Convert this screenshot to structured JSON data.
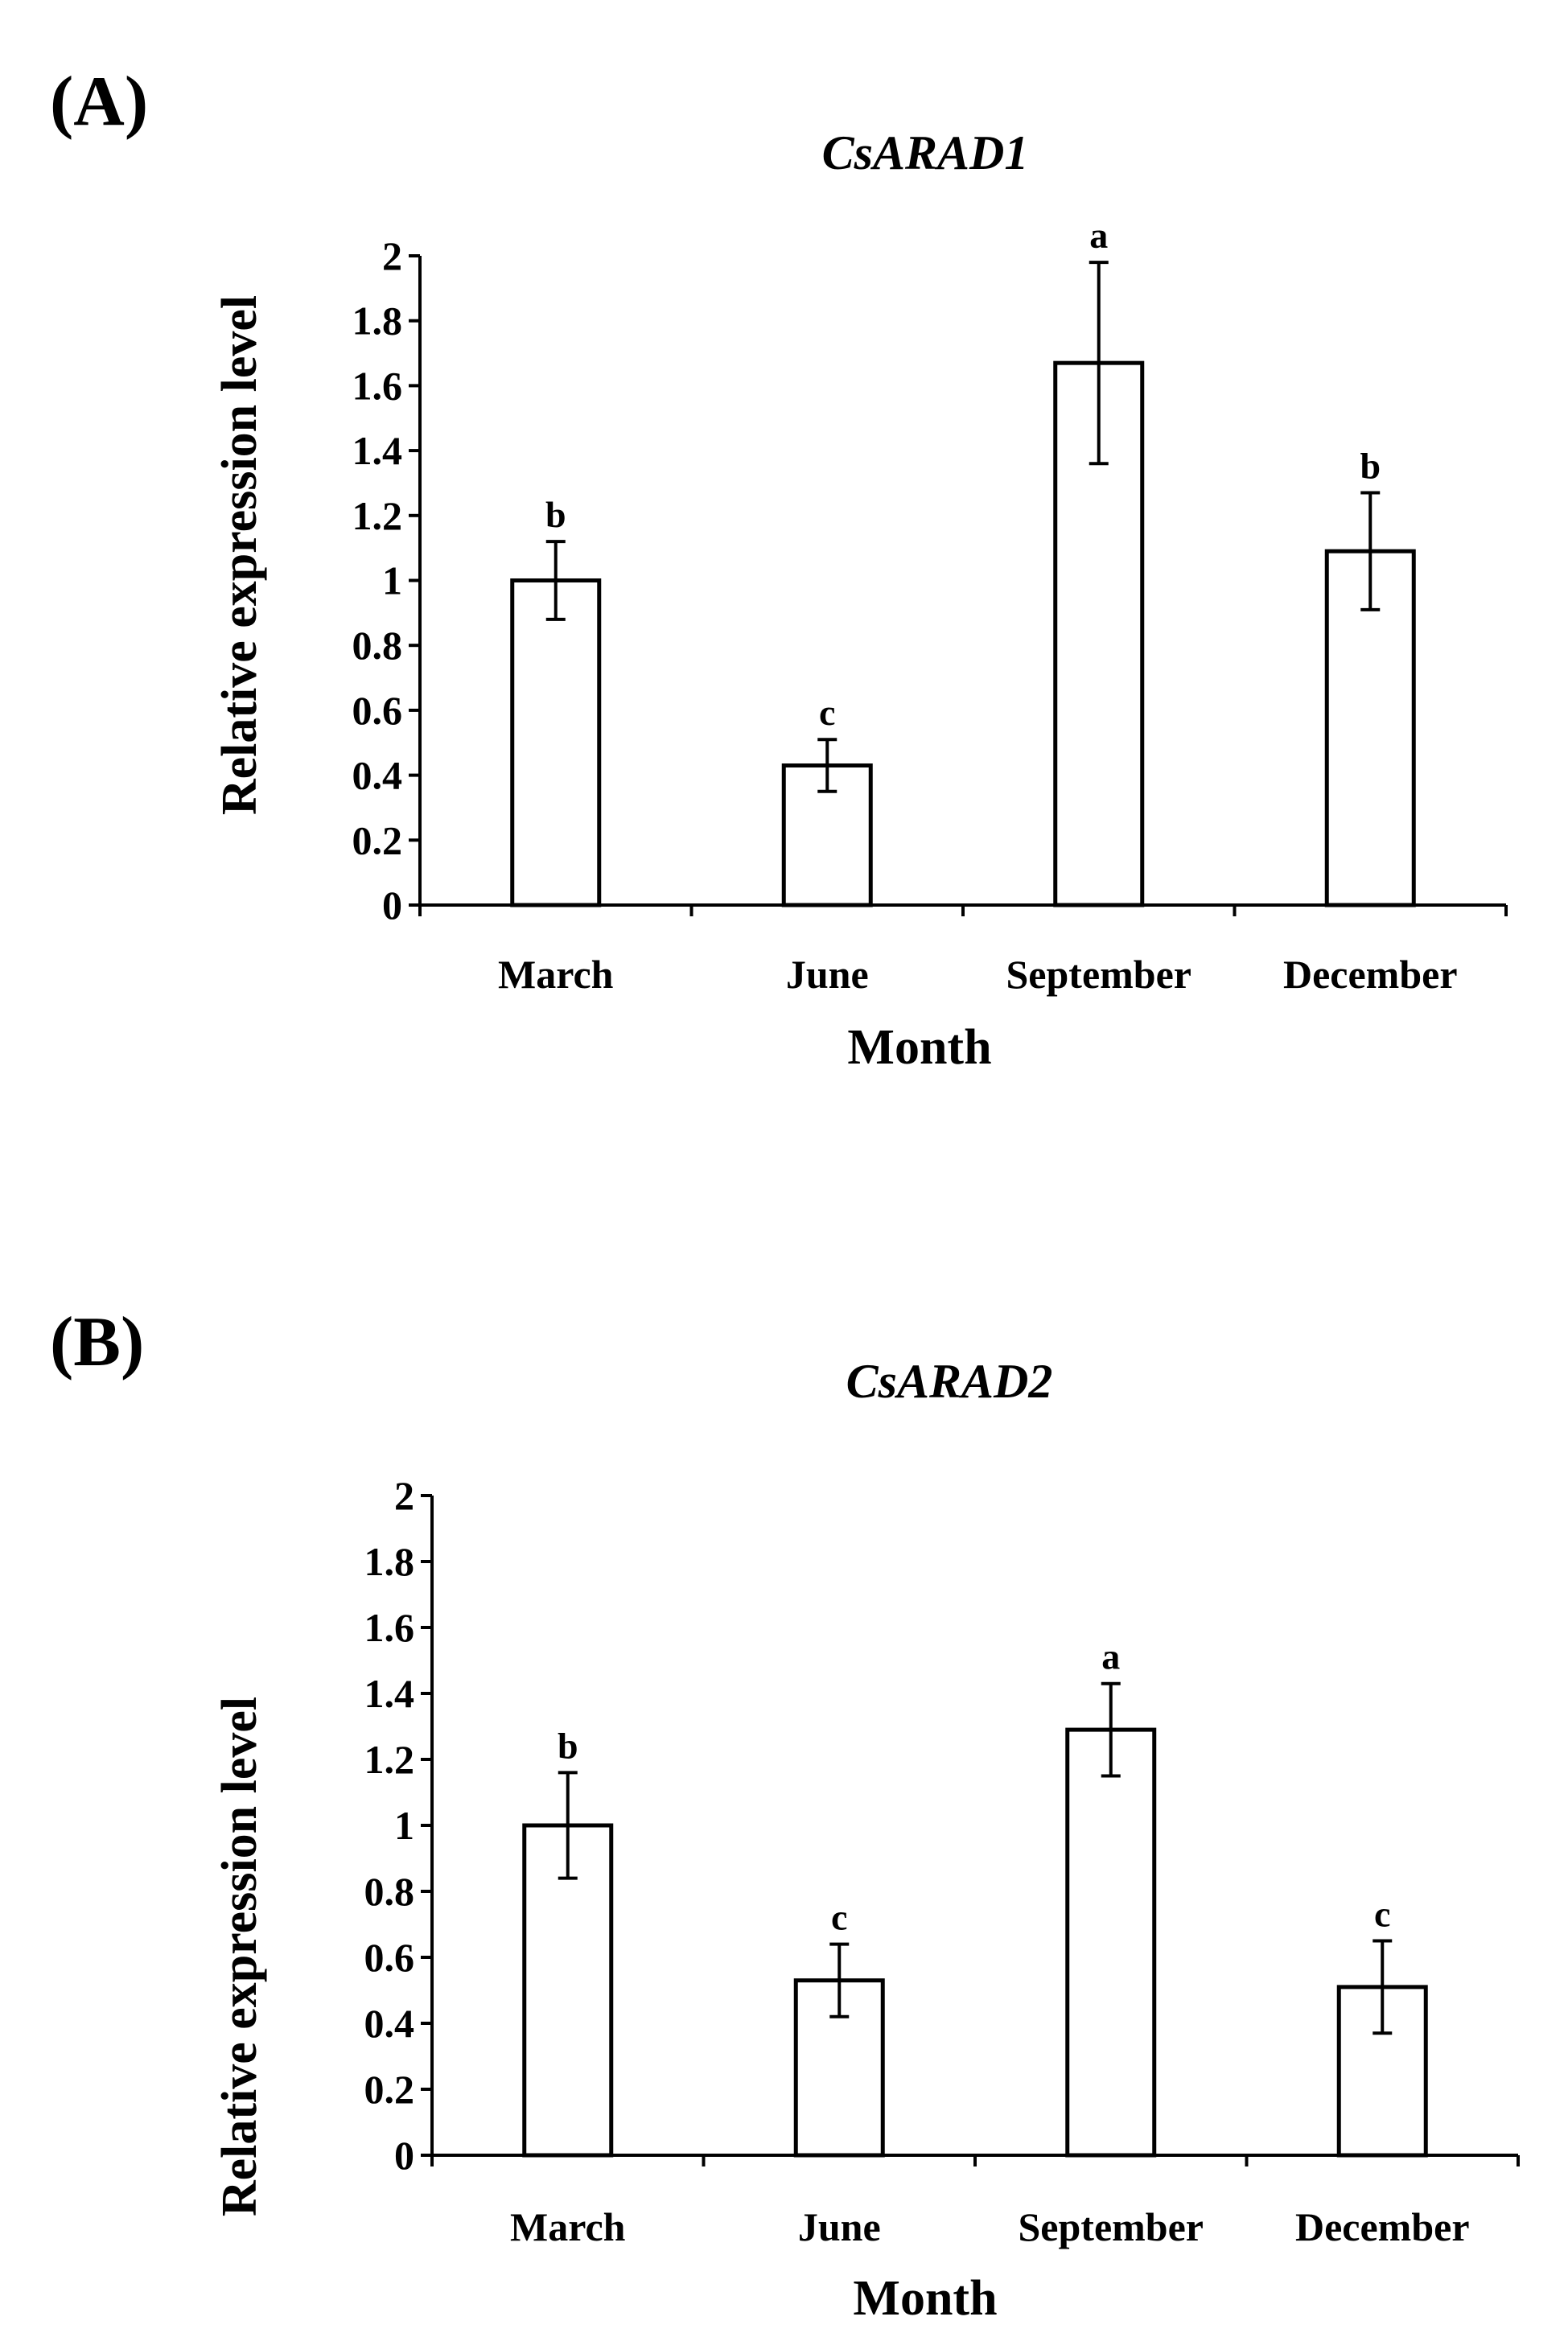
{
  "colors": {
    "bar_fill": "#ffffff",
    "bar_stroke": "#000000",
    "axis": "#000000",
    "background": "#ffffff"
  },
  "chart_data": [
    {
      "panel_label": "(A)",
      "type": "bar",
      "title": "CsARAD1",
      "xlabel": "Month",
      "ylabel": "Relative expression level",
      "categories": [
        "March",
        "June",
        "September",
        "December"
      ],
      "values": [
        1.0,
        0.43,
        1.67,
        1.09
      ],
      "error": [
        0.12,
        0.08,
        0.31,
        0.18
      ],
      "significance": [
        "b",
        "c",
        "a",
        "b"
      ],
      "ylim": [
        0,
        2
      ],
      "yticks": [
        "0",
        "0.2",
        "0.4",
        "0.6",
        "0.8",
        "1",
        "1.2",
        "1.4",
        "1.6",
        "1.8",
        "2"
      ],
      "grid": false,
      "legend": "none"
    },
    {
      "panel_label": "(B)",
      "type": "bar",
      "title": "CsARAD2",
      "xlabel": "Month",
      "ylabel": "Relative expression level",
      "categories": [
        "March",
        "June",
        "September",
        "December"
      ],
      "values": [
        1.0,
        0.53,
        1.29,
        0.51
      ],
      "error": [
        0.16,
        0.11,
        0.14,
        0.14
      ],
      "significance": [
        "b",
        "c",
        "a",
        "c"
      ],
      "ylim": [
        0,
        2
      ],
      "yticks": [
        "0",
        "0.2",
        "0.4",
        "0.6",
        "0.8",
        "1",
        "1.2",
        "1.4",
        "1.6",
        "1.8",
        "2"
      ],
      "grid": false,
      "legend": "none"
    }
  ]
}
